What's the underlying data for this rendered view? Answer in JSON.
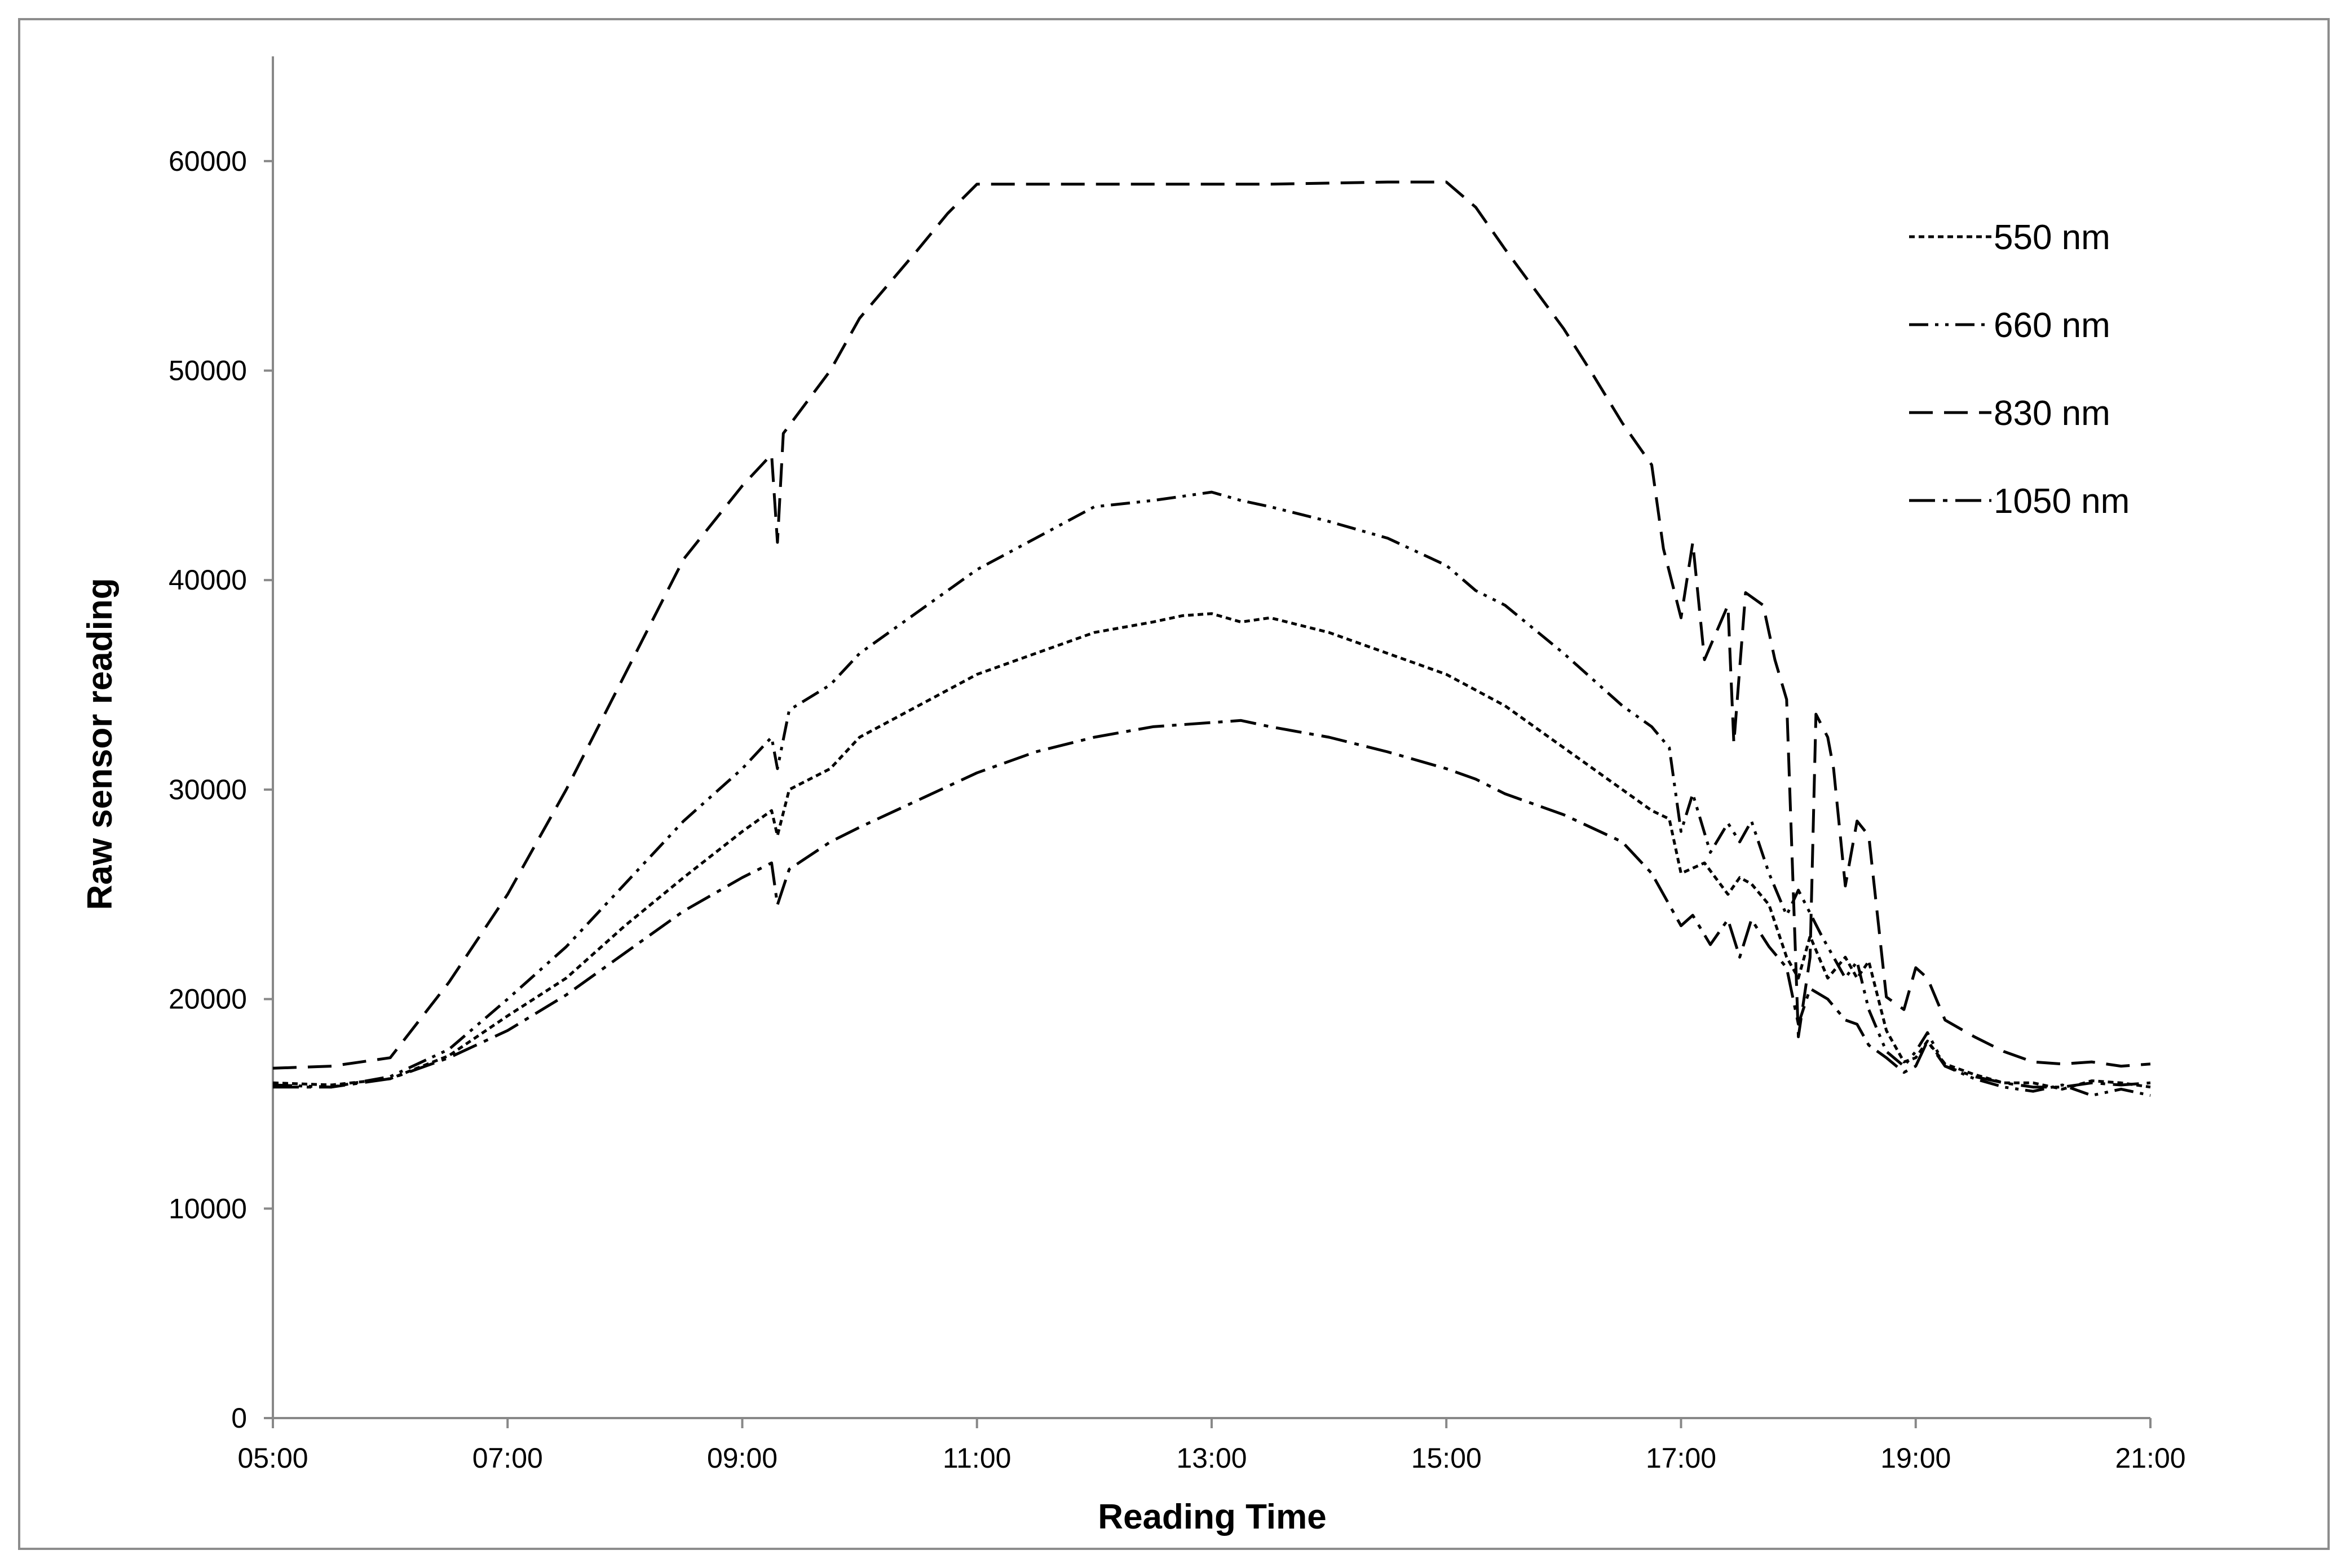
{
  "chart_data": {
    "type": "line",
    "xlabel": "Reading Time",
    "ylabel": "Raw sensor reading",
    "x_unit": "hours",
    "xlim": [
      5,
      21
    ],
    "ylim": [
      0,
      65000
    ],
    "grid": false,
    "legend_placement": "top-right",
    "x_ticks": [
      {
        "value": 5,
        "label": "05:00"
      },
      {
        "value": 7,
        "label": "07:00"
      },
      {
        "value": 9,
        "label": "09:00"
      },
      {
        "value": 11,
        "label": "11:00"
      },
      {
        "value": 13,
        "label": "13:00"
      },
      {
        "value": 15,
        "label": "15:00"
      },
      {
        "value": 17,
        "label": "17:00"
      },
      {
        "value": 19,
        "label": "19:00"
      },
      {
        "value": 21,
        "label": "21:00"
      }
    ],
    "y_ticks": [
      {
        "value": 0,
        "label": "0"
      },
      {
        "value": 10000,
        "label": "10000"
      },
      {
        "value": 20000,
        "label": "20000"
      },
      {
        "value": 30000,
        "label": "30000"
      },
      {
        "value": 40000,
        "label": "40000"
      },
      {
        "value": 50000,
        "label": "50000"
      },
      {
        "value": 60000,
        "label": "60000"
      }
    ],
    "series": [
      {
        "name": "550 nm",
        "dash": "dotted",
        "color": "#000000",
        "points": [
          [
            5.0,
            16000
          ],
          [
            5.5,
            15900
          ],
          [
            6.0,
            16200
          ],
          [
            6.5,
            17300
          ],
          [
            7.0,
            19200
          ],
          [
            7.5,
            21000
          ],
          [
            8.0,
            23500
          ],
          [
            8.5,
            25800
          ],
          [
            9.0,
            28000
          ],
          [
            9.25,
            29000
          ],
          [
            9.3,
            27800
          ],
          [
            9.4,
            30000
          ],
          [
            9.75,
            31000
          ],
          [
            10.0,
            32500
          ],
          [
            10.5,
            34000
          ],
          [
            11.0,
            35500
          ],
          [
            11.5,
            36500
          ],
          [
            12.0,
            37500
          ],
          [
            12.5,
            38000
          ],
          [
            12.75,
            38300
          ],
          [
            13.0,
            38400
          ],
          [
            13.25,
            38000
          ],
          [
            13.5,
            38200
          ],
          [
            14.0,
            37500
          ],
          [
            14.5,
            36500
          ],
          [
            15.0,
            35500
          ],
          [
            15.5,
            34000
          ],
          [
            16.0,
            32000
          ],
          [
            16.5,
            30000
          ],
          [
            16.75,
            29000
          ],
          [
            16.9,
            28600
          ],
          [
            17.0,
            26000
          ],
          [
            17.2,
            26500
          ],
          [
            17.4,
            25000
          ],
          [
            17.5,
            25800
          ],
          [
            17.6,
            25500
          ],
          [
            17.75,
            24500
          ],
          [
            17.9,
            22000
          ],
          [
            18.0,
            21000
          ],
          [
            18.1,
            23000
          ],
          [
            18.25,
            21000
          ],
          [
            18.4,
            22000
          ],
          [
            18.5,
            21000
          ],
          [
            18.6,
            21800
          ],
          [
            18.75,
            18500
          ],
          [
            18.9,
            17000
          ],
          [
            19.0,
            17200
          ],
          [
            19.1,
            18000
          ],
          [
            19.25,
            16900
          ],
          [
            19.5,
            16400
          ],
          [
            19.75,
            16000
          ],
          [
            20.0,
            16000
          ],
          [
            20.25,
            15700
          ],
          [
            20.5,
            16100
          ],
          [
            20.75,
            16000
          ],
          [
            21.0,
            15800
          ]
        ]
      },
      {
        "name": "660 nm",
        "dash": "dash-dot-dot",
        "color": "#000000",
        "points": [
          [
            5.0,
            15900
          ],
          [
            5.5,
            15800
          ],
          [
            6.0,
            16300
          ],
          [
            6.5,
            17600
          ],
          [
            7.0,
            20000
          ],
          [
            7.5,
            22500
          ],
          [
            8.0,
            25500
          ],
          [
            8.5,
            28500
          ],
          [
            9.0,
            31000
          ],
          [
            9.25,
            32500
          ],
          [
            9.3,
            31000
          ],
          [
            9.4,
            33800
          ],
          [
            9.75,
            35000
          ],
          [
            10.0,
            36500
          ],
          [
            10.5,
            38500
          ],
          [
            11.0,
            40500
          ],
          [
            11.5,
            42000
          ],
          [
            12.0,
            43500
          ],
          [
            12.5,
            43800
          ],
          [
            12.75,
            44000
          ],
          [
            13.0,
            44200
          ],
          [
            13.25,
            43800
          ],
          [
            13.5,
            43500
          ],
          [
            14.0,
            42800
          ],
          [
            14.5,
            42000
          ],
          [
            15.0,
            40700
          ],
          [
            15.25,
            39500
          ],
          [
            15.5,
            38800
          ],
          [
            16.0,
            36500
          ],
          [
            16.5,
            34000
          ],
          [
            16.75,
            33000
          ],
          [
            16.9,
            32000
          ],
          [
            17.0,
            28000
          ],
          [
            17.1,
            29800
          ],
          [
            17.25,
            27000
          ],
          [
            17.4,
            28400
          ],
          [
            17.5,
            27500
          ],
          [
            17.6,
            28500
          ],
          [
            17.75,
            26000
          ],
          [
            17.9,
            24000
          ],
          [
            18.0,
            25200
          ],
          [
            18.2,
            23000
          ],
          [
            18.4,
            21000
          ],
          [
            18.5,
            21800
          ],
          [
            18.6,
            19500
          ],
          [
            18.75,
            17500
          ],
          [
            18.9,
            16800
          ],
          [
            19.0,
            17500
          ],
          [
            19.1,
            18400
          ],
          [
            19.25,
            16800
          ],
          [
            19.5,
            16200
          ],
          [
            19.75,
            15800
          ],
          [
            20.0,
            15600
          ],
          [
            20.25,
            15900
          ],
          [
            20.5,
            15400
          ],
          [
            20.75,
            15700
          ],
          [
            21.0,
            15400
          ]
        ]
      },
      {
        "name": "830 nm",
        "dash": "dashed",
        "color": "#000000",
        "points": [
          [
            5.0,
            16700
          ],
          [
            5.5,
            16800
          ],
          [
            6.0,
            17200
          ],
          [
            6.5,
            20800
          ],
          [
            7.0,
            25000
          ],
          [
            7.5,
            30000
          ],
          [
            8.0,
            35500
          ],
          [
            8.5,
            41000
          ],
          [
            9.0,
            44500
          ],
          [
            9.25,
            46000
          ],
          [
            9.3,
            41800
          ],
          [
            9.35,
            47000
          ],
          [
            9.75,
            50000
          ],
          [
            10.0,
            52500
          ],
          [
            10.5,
            55800
          ],
          [
            10.75,
            57500
          ],
          [
            11.0,
            58900
          ],
          [
            11.5,
            58900
          ],
          [
            12.0,
            58900
          ],
          [
            12.5,
            58900
          ],
          [
            13.0,
            58900
          ],
          [
            13.5,
            58900
          ],
          [
            14.0,
            58950
          ],
          [
            14.5,
            59000
          ],
          [
            15.0,
            59000
          ],
          [
            15.25,
            57800
          ],
          [
            15.5,
            55800
          ],
          [
            16.0,
            52000
          ],
          [
            16.25,
            49800
          ],
          [
            16.5,
            47500
          ],
          [
            16.75,
            45500
          ],
          [
            16.85,
            41500
          ],
          [
            17.0,
            38200
          ],
          [
            17.1,
            41800
          ],
          [
            17.2,
            36200
          ],
          [
            17.4,
            38800
          ],
          [
            17.45,
            32200
          ],
          [
            17.55,
            39400
          ],
          [
            17.7,
            38800
          ],
          [
            17.8,
            36200
          ],
          [
            17.9,
            34300
          ],
          [
            18.0,
            18200
          ],
          [
            18.1,
            22000
          ],
          [
            18.15,
            33600
          ],
          [
            18.25,
            32500
          ],
          [
            18.3,
            31000
          ],
          [
            18.4,
            25400
          ],
          [
            18.5,
            28500
          ],
          [
            18.6,
            27800
          ],
          [
            18.75,
            20100
          ],
          [
            18.9,
            19500
          ],
          [
            19.0,
            21500
          ],
          [
            19.1,
            21000
          ],
          [
            19.25,
            19000
          ],
          [
            19.5,
            18200
          ],
          [
            19.75,
            17500
          ],
          [
            20.0,
            17000
          ],
          [
            20.25,
            16900
          ],
          [
            20.5,
            17000
          ],
          [
            20.75,
            16800
          ],
          [
            21.0,
            16900
          ]
        ]
      },
      {
        "name": "1050 nm",
        "dash": "dash-dot",
        "color": "#000000",
        "points": [
          [
            5.0,
            15800
          ],
          [
            5.5,
            15800
          ],
          [
            6.0,
            16200
          ],
          [
            6.5,
            17200
          ],
          [
            7.0,
            18500
          ],
          [
            7.5,
            20200
          ],
          [
            8.0,
            22200
          ],
          [
            8.5,
            24200
          ],
          [
            9.0,
            25800
          ],
          [
            9.25,
            26500
          ],
          [
            9.3,
            24500
          ],
          [
            9.4,
            26200
          ],
          [
            9.75,
            27500
          ],
          [
            10.0,
            28200
          ],
          [
            10.5,
            29500
          ],
          [
            11.0,
            30800
          ],
          [
            11.5,
            31800
          ],
          [
            12.0,
            32500
          ],
          [
            12.5,
            33000
          ],
          [
            12.75,
            33100
          ],
          [
            13.0,
            33200
          ],
          [
            13.25,
            33300
          ],
          [
            13.5,
            33000
          ],
          [
            14.0,
            32500
          ],
          [
            14.5,
            31800
          ],
          [
            15.0,
            31000
          ],
          [
            15.25,
            30500
          ],
          [
            15.5,
            29800
          ],
          [
            16.0,
            28800
          ],
          [
            16.5,
            27500
          ],
          [
            16.75,
            26000
          ],
          [
            16.9,
            24500
          ],
          [
            17.0,
            23500
          ],
          [
            17.1,
            24000
          ],
          [
            17.25,
            22600
          ],
          [
            17.4,
            23800
          ],
          [
            17.5,
            22000
          ],
          [
            17.6,
            23800
          ],
          [
            17.75,
            22500
          ],
          [
            17.9,
            21500
          ],
          [
            18.0,
            18800
          ],
          [
            18.1,
            20500
          ],
          [
            18.25,
            20000
          ],
          [
            18.4,
            19000
          ],
          [
            18.5,
            18800
          ],
          [
            18.6,
            17800
          ],
          [
            18.75,
            17200
          ],
          [
            18.9,
            16500
          ],
          [
            19.0,
            16800
          ],
          [
            19.1,
            18000
          ],
          [
            19.25,
            16800
          ],
          [
            19.5,
            16300
          ],
          [
            19.75,
            16000
          ],
          [
            20.0,
            15800
          ],
          [
            20.25,
            15800
          ],
          [
            20.5,
            16000
          ],
          [
            20.75,
            15900
          ],
          [
            21.0,
            16000
          ]
        ]
      }
    ]
  }
}
